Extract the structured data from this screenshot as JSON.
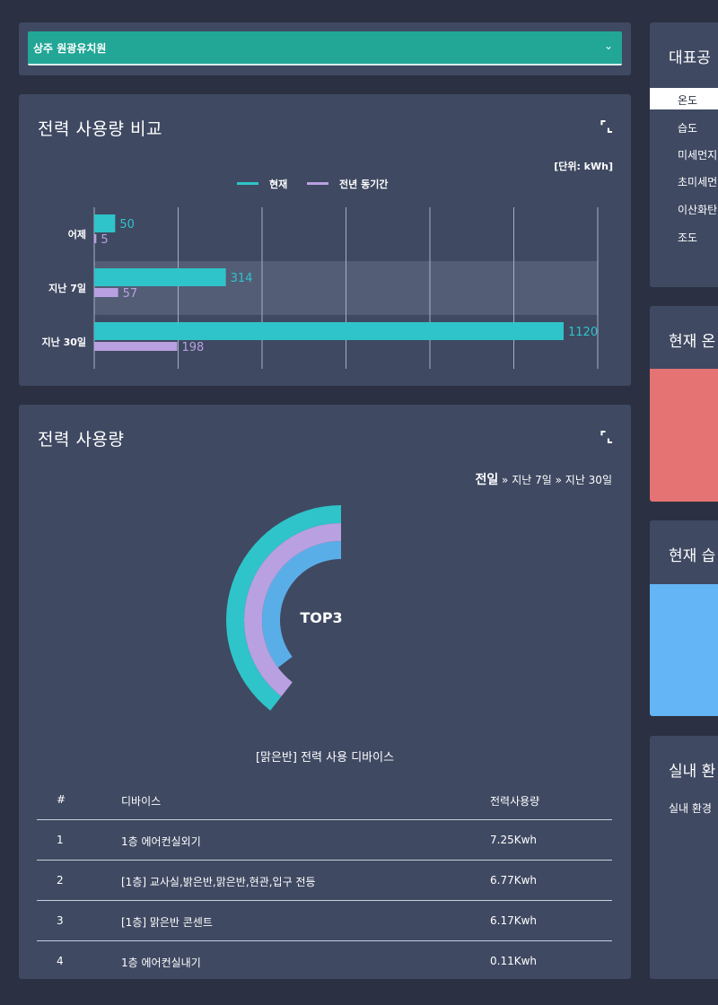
{
  "facility_select": {
    "value": "상주 원광유치원"
  },
  "comparison_card": {
    "title": "전력 사용량 비교",
    "unit_label": "[단위: kWh]",
    "chart_data": {
      "type": "bar",
      "orientation": "horizontal",
      "categories": [
        "어제",
        "지난 7일",
        "지난 30일"
      ],
      "series": [
        {
          "name": "현재",
          "values": [
            50,
            314,
            1120
          ],
          "color": "#2ec4c9"
        },
        {
          "name": "전년 동기간",
          "values": [
            5,
            57,
            198
          ],
          "color": "#b9a0e0"
        }
      ],
      "xlim": [
        0,
        1120
      ],
      "grid": true,
      "legend": "top-center",
      "highlighted_category": "지난 7일"
    }
  },
  "usage_card": {
    "title": "전력 사용량",
    "periods": {
      "current": "전일",
      "sep": "»",
      "week": "지난 7일",
      "month": "지난 30일"
    },
    "donut_center": "TOP3",
    "donut_colors": [
      "#2ec4c9",
      "#b9a0e0",
      "#5aaee8"
    ],
    "device_caption": "[맑은반] 전력 사용 디바이스",
    "table": {
      "headers": [
        "#",
        "디바이스",
        "전력사용량"
      ],
      "rows": [
        [
          "1",
          "1층 에어컨실외기",
          "7.25Kwh"
        ],
        [
          "2",
          "[1층] 교사실,밝은반,맑은반,현관,입구 전등",
          "6.77Kwh"
        ],
        [
          "3",
          "[1층] 맑은반 콘센트",
          "6.17Kwh"
        ],
        [
          "4",
          "1층 에어컨실내기",
          "0.11Kwh"
        ]
      ]
    }
  },
  "right_panel": {
    "rep_title": "대표공",
    "rep_items": [
      "온도",
      "습도",
      "미세먼지",
      "초미세먼",
      "이산화탄",
      "조도"
    ],
    "temp_title": "현재 온",
    "temp_color": "#e57373",
    "humidity_title": "현재 습",
    "humidity_color": "#64b5f6",
    "indoor_title": "실내 환",
    "indoor_text": "실내 환경"
  }
}
